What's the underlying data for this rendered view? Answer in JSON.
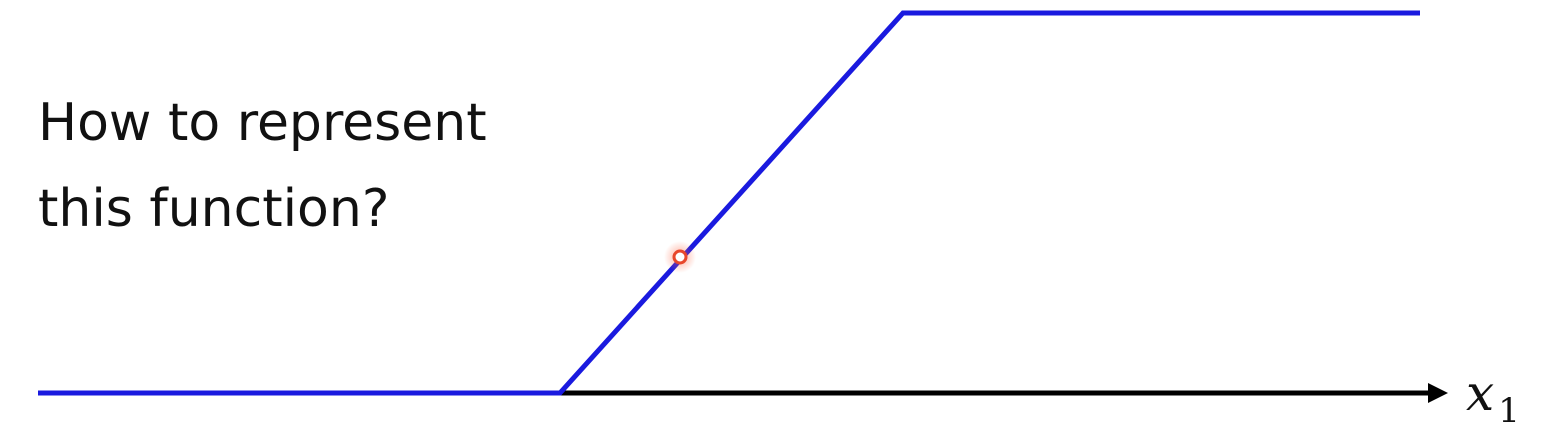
{
  "slide": {
    "question_line_1": "How to represent",
    "question_line_2": "this function?"
  },
  "axis": {
    "label_var": "x",
    "label_subscript": "1"
  },
  "colors": {
    "function_line": "#1a1adf",
    "axis_line": "#000000",
    "cursor_marker": "#e8472b"
  }
}
